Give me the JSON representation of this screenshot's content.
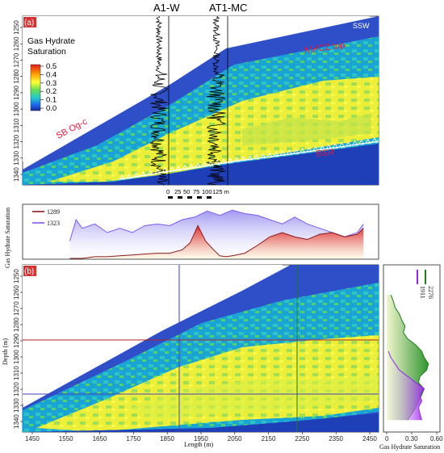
{
  "figure": {
    "panel_a_label": "(a)",
    "panel_b_label": "(b)",
    "wells": [
      "A1-W",
      "AT1-MC"
    ],
    "direction": "SSW",
    "annotations": [
      "SB Og-c",
      "MHCZ top",
      "BSR"
    ],
    "scale_bar": [
      "0",
      "25",
      "50",
      "75",
      "100",
      "125 m"
    ],
    "colorbar": {
      "title": "Gas Hydrate Saturation",
      "ticks": [
        "0.5",
        "0.4",
        "0.3",
        "0.2",
        "0.1",
        "0.0"
      ]
    },
    "panel_a_depth_ticks": [
      "1250",
      "1260",
      "1270",
      "1280",
      "1290",
      "1300",
      "1310",
      "1320",
      "1330",
      "1340"
    ],
    "panel_b_depth_ticks": [
      "1250",
      "1260",
      "1270",
      "1280",
      "1290",
      "1300",
      "1310",
      "1320",
      "1330",
      "1340"
    ],
    "depth_axis_label": "Depth (m)",
    "length_axis_label": "Length (m)",
    "length_ticks": [
      "1450",
      "1550",
      "1650",
      "1750",
      "1850",
      "1950",
      "2050",
      "2150",
      "2250",
      "2350",
      "2450"
    ],
    "middle_ylabel": "Gas Hydrate Saturation",
    "right_xlabel": "Gas Hydrate Saturation",
    "right_xticks": [
      "0",
      "0.30",
      "0.60"
    ]
  },
  "chart_data": [
    {
      "type": "area",
      "panel": "middle",
      "ylabel": "Gas Hydrate Saturation",
      "ylim": [
        0,
        0.6
      ],
      "xlim": [
        1420,
        2500
      ],
      "series": [
        {
          "name": "1289",
          "color": "#8b1a1a",
          "x": [
            1540,
            1580,
            1620,
            1660,
            1700,
            1740,
            1780,
            1820,
            1860,
            1900,
            1925,
            1950,
            1975,
            2000,
            2020,
            2040,
            2060,
            2100,
            2140,
            2180,
            2220,
            2260,
            2300,
            2340,
            2380,
            2420,
            2460,
            2480
          ],
          "values": [
            0.0,
            0.0,
            0.02,
            0.02,
            0.03,
            0.04,
            0.05,
            0.06,
            0.06,
            0.1,
            0.18,
            0.38,
            0.2,
            0.1,
            0.03,
            0.02,
            0.03,
            0.06,
            0.15,
            0.25,
            0.3,
            0.25,
            0.22,
            0.28,
            0.3,
            0.25,
            0.28,
            0.35
          ]
        },
        {
          "name": "1323",
          "color": "#7f5af0",
          "x": [
            1540,
            1560,
            1580,
            1620,
            1660,
            1700,
            1740,
            1780,
            1820,
            1860,
            1900,
            1940,
            1980,
            2020,
            2060,
            2100,
            2140,
            2180,
            2220,
            2260,
            2300,
            2340,
            2380,
            2420,
            2460,
            2480
          ],
          "values": [
            0.2,
            0.45,
            0.35,
            0.4,
            0.3,
            0.35,
            0.3,
            0.38,
            0.4,
            0.38,
            0.45,
            0.48,
            0.55,
            0.5,
            0.56,
            0.52,
            0.5,
            0.45,
            0.4,
            0.48,
            0.4,
            0.35,
            0.3,
            0.25,
            0.3,
            0.4
          ]
        }
      ]
    },
    {
      "type": "area",
      "panel": "right",
      "xlabel": "Gas Hydrate Saturation",
      "xlim": [
        0,
        0.6
      ],
      "ylim": [
        1250,
        1345
      ],
      "series": [
        {
          "name": "2276",
          "color": "#1e7b1e",
          "depth": [
            1262,
            1266,
            1270,
            1274,
            1278,
            1282,
            1286,
            1290,
            1294,
            1298,
            1302,
            1306,
            1310,
            1314,
            1318,
            1322,
            1326,
            1330,
            1334,
            1338,
            1342
          ],
          "values": [
            0.05,
            0.08,
            0.1,
            0.15,
            0.18,
            0.22,
            0.2,
            0.25,
            0.35,
            0.42,
            0.45,
            0.5,
            0.48,
            0.4,
            0.38,
            0.45,
            0.42,
            0.38,
            0.35,
            0.3,
            0.25
          ]
        },
        {
          "name": "1911",
          "color": "#8a2be2",
          "depth": [
            1298,
            1302,
            1306,
            1310,
            1314,
            1318,
            1322,
            1326,
            1330,
            1334,
            1338,
            1342
          ],
          "values": [
            0.02,
            0.05,
            0.1,
            0.15,
            0.25,
            0.35,
            0.45,
            0.4,
            0.42,
            0.38,
            0.4,
            0.42
          ]
        }
      ]
    }
  ]
}
